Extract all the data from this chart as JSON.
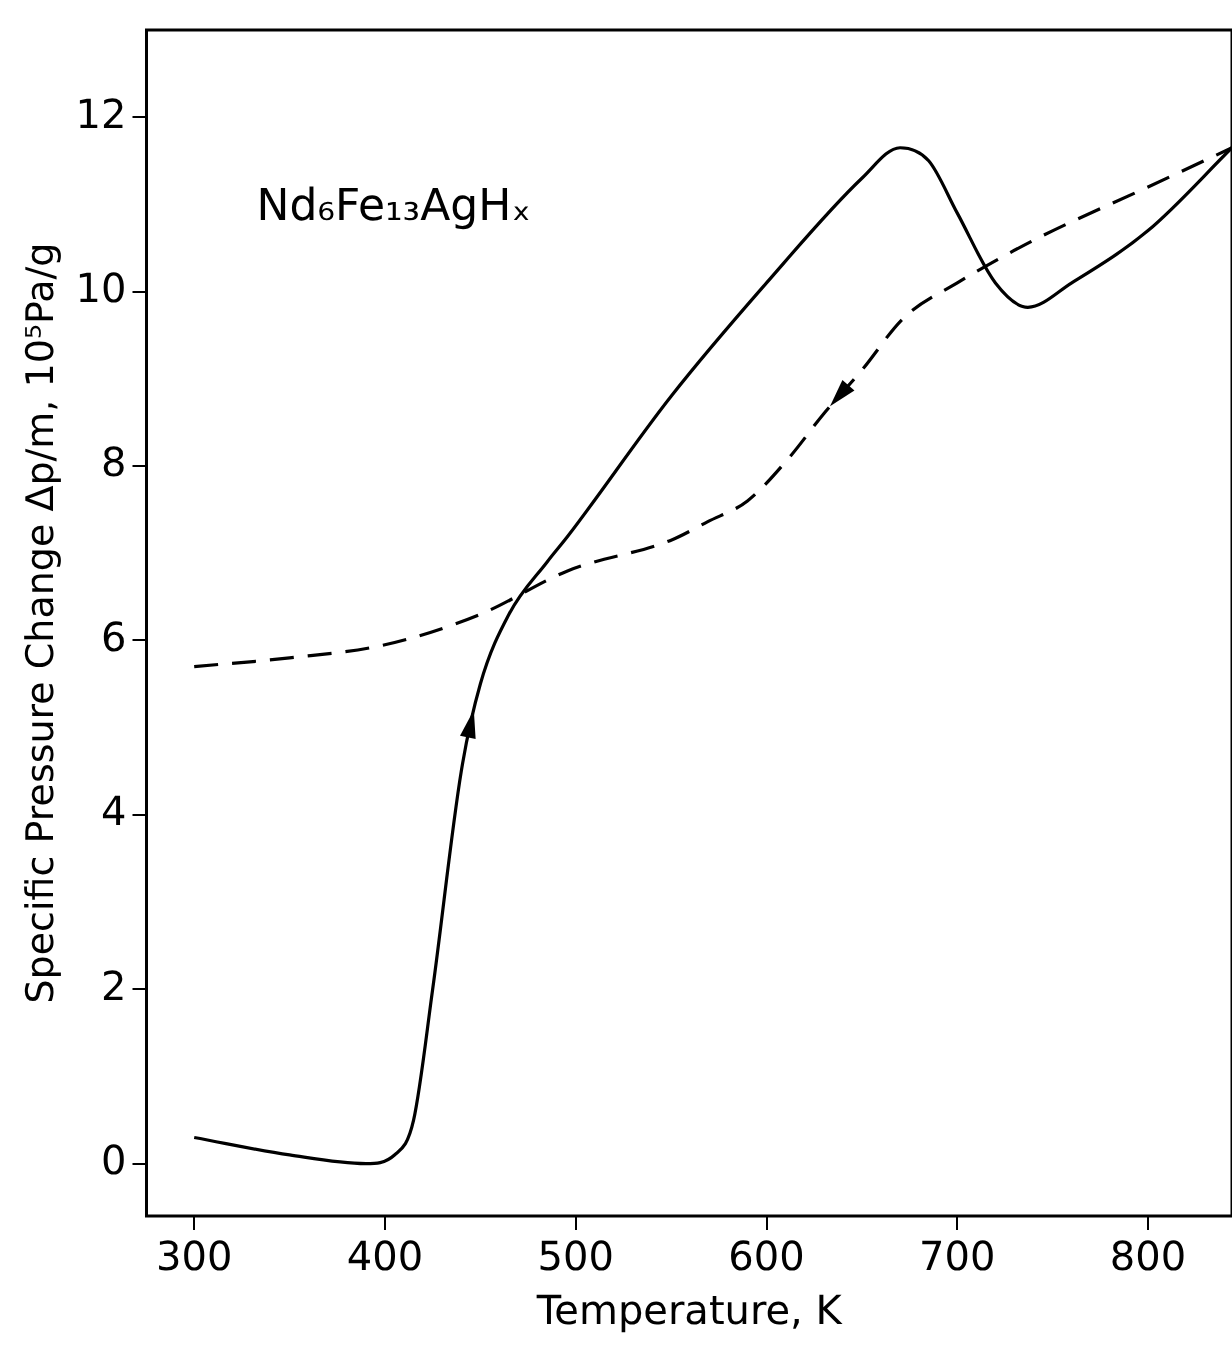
{
  "chart_data": {
    "type": "line",
    "xlabel": "Temperature, K",
    "ylabel": "Specific Pressure Change Δp/m, 10⁵Pa/g",
    "annotations": [
      "Nd₆Fe₁₃AgHₓ"
    ],
    "xlim": [
      275,
      844
    ],
    "xticks": [
      300,
      400,
      500,
      600,
      700,
      800
    ],
    "ylim": [
      -0.6,
      13
    ],
    "yticks": [
      0,
      2,
      4,
      6,
      8,
      10,
      12
    ],
    "grid": false,
    "legend": false,
    "marker": "none",
    "series": [
      {
        "color": "#000000",
        "line_style": "solid",
        "x": [
          300,
          350,
          390,
          405,
          415,
          425,
          440,
          450,
          465,
          485,
          496,
          550,
          600,
          650,
          670,
          685,
          700,
          720,
          737,
          760,
          800,
          844
        ],
        "values": [
          0.3,
          0.1,
          0,
          0.1,
          0.5,
          2,
          4.5,
          5.5,
          6.3,
          6.9,
          7.2,
          8.8,
          10.1,
          11.3,
          11.65,
          11.5,
          10.9,
          10.1,
          9.82,
          10.1,
          10.7,
          11.65
        ]
      },
      {
        "color": "#000000",
        "line_style": "dashed",
        "x": [
          300,
          350,
          400,
          450,
          496,
          550,
          569,
          590,
          612,
          630,
          650,
          672,
          700,
          741,
          800,
          844
        ],
        "values": [
          5.7,
          5.8,
          5.95,
          6.3,
          6.8,
          7.15,
          7.36,
          7.6,
          8.1,
          8.6,
          9.1,
          9.7,
          10.1,
          10.6,
          11.2,
          11.65
        ]
      }
    ]
  }
}
